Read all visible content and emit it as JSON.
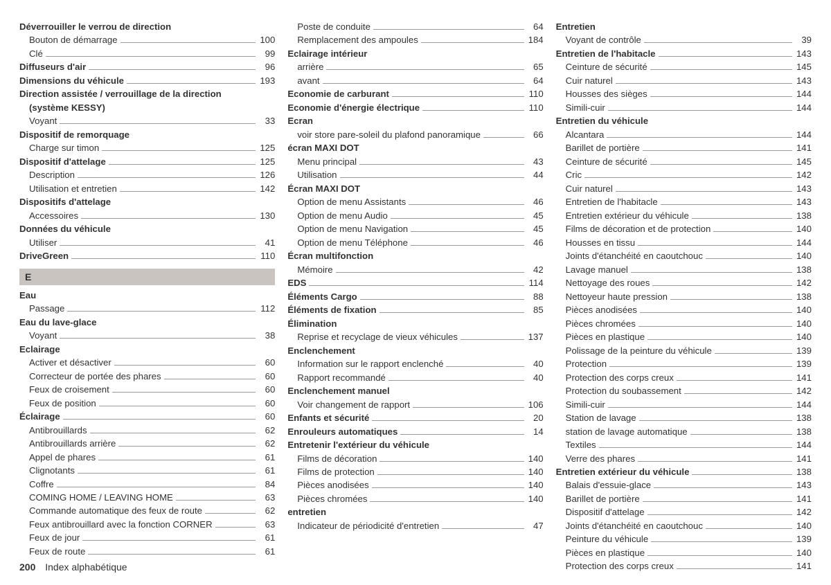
{
  "footer": {
    "page_number": "200",
    "title": "Index alphabétique"
  },
  "letter_header": "E",
  "columns": [
    [
      {
        "type": "header",
        "label": "Déverrouiller le verrou de direction"
      },
      {
        "type": "sub",
        "label": "Bouton de démarrage",
        "page": "100"
      },
      {
        "type": "sub",
        "label": "Clé",
        "page": "99"
      },
      {
        "type": "header",
        "label": "Diffuseurs d'air",
        "page": "96"
      },
      {
        "type": "header",
        "label": "Dimensions du véhicule",
        "page": "193"
      },
      {
        "type": "header",
        "label": "Direction assistée / verrouillage de la direction"
      },
      {
        "type": "sub",
        "label": "(système KESSY)",
        "bold": true
      },
      {
        "type": "sub",
        "label": "Voyant",
        "page": "33"
      },
      {
        "type": "header",
        "label": "Dispositif de remorquage"
      },
      {
        "type": "sub",
        "label": "Charge sur timon",
        "page": "125"
      },
      {
        "type": "header",
        "label": "Dispositif d'attelage",
        "page": "125"
      },
      {
        "type": "sub",
        "label": "Description",
        "page": "126"
      },
      {
        "type": "sub",
        "label": "Utilisation et entretien",
        "page": "142"
      },
      {
        "type": "header",
        "label": "Dispositifs d'attelage"
      },
      {
        "type": "sub",
        "label": "Accessoires",
        "page": "130"
      },
      {
        "type": "header",
        "label": "Données du véhicule"
      },
      {
        "type": "sub",
        "label": "Utiliser",
        "page": "41"
      },
      {
        "type": "header",
        "label": "DriveGreen",
        "page": "110"
      },
      {
        "type": "letter"
      },
      {
        "type": "header",
        "label": "Eau"
      },
      {
        "type": "sub",
        "label": "Passage",
        "page": "112"
      },
      {
        "type": "header",
        "label": "Eau du lave-glace"
      },
      {
        "type": "sub",
        "label": "Voyant",
        "page": "38"
      },
      {
        "type": "header",
        "label": "Eclairage"
      },
      {
        "type": "sub",
        "label": "Activer et désactiver",
        "page": "60"
      },
      {
        "type": "sub",
        "label": "Correcteur de portée des phares",
        "page": "60"
      },
      {
        "type": "sub",
        "label": "Feux de croisement",
        "page": "60"
      },
      {
        "type": "sub",
        "label": "Feux de position",
        "page": "60"
      },
      {
        "type": "header",
        "label": "Éclairage",
        "page": "60"
      },
      {
        "type": "sub",
        "label": "Antibrouillards",
        "page": "62"
      },
      {
        "type": "sub",
        "label": "Antibrouillards arrière",
        "page": "62"
      },
      {
        "type": "sub",
        "label": "Appel de phares",
        "page": "61"
      },
      {
        "type": "sub",
        "label": "Clignotants",
        "page": "61"
      },
      {
        "type": "sub",
        "label": "Coffre",
        "page": "84"
      },
      {
        "type": "sub",
        "label": "COMING HOME / LEAVING HOME",
        "page": "63"
      },
      {
        "type": "sub",
        "label": "Commande automatique des feux de route",
        "page": "62"
      },
      {
        "type": "sub",
        "label": "Feux antibrouillard avec la fonction CORNER",
        "page": "63"
      },
      {
        "type": "sub",
        "label": "Feux de jour",
        "page": "61"
      },
      {
        "type": "sub",
        "label": "Feux de route",
        "page": "61"
      }
    ],
    [
      {
        "type": "sub",
        "label": "Poste de conduite",
        "page": "64"
      },
      {
        "type": "sub",
        "label": "Remplacement des ampoules",
        "page": "184"
      },
      {
        "type": "header",
        "label": "Eclairage intérieur"
      },
      {
        "type": "sub",
        "label": "arrière",
        "page": "65"
      },
      {
        "type": "sub",
        "label": "avant",
        "page": "64"
      },
      {
        "type": "header",
        "label": "Economie de carburant",
        "page": "110"
      },
      {
        "type": "header",
        "label": "Economie d'énergie électrique",
        "page": "110"
      },
      {
        "type": "header",
        "label": "Ecran"
      },
      {
        "type": "sub",
        "label": "voir store pare-soleil du plafond panoramique",
        "page": "66"
      },
      {
        "type": "header",
        "label": "écran MAXI DOT"
      },
      {
        "type": "sub",
        "label": "Menu principal",
        "page": "43"
      },
      {
        "type": "sub",
        "label": "Utilisation",
        "page": "44"
      },
      {
        "type": "header",
        "label": "Écran MAXI DOT"
      },
      {
        "type": "sub",
        "label": "Option de menu Assistants",
        "page": "46"
      },
      {
        "type": "sub",
        "label": "Option de menu Audio",
        "page": "45"
      },
      {
        "type": "sub",
        "label": "Option de menu Navigation",
        "page": "45"
      },
      {
        "type": "sub",
        "label": "Option de menu Téléphone",
        "page": "46"
      },
      {
        "type": "header",
        "label": "Écran multifonction"
      },
      {
        "type": "sub",
        "label": "Mémoire",
        "page": "42"
      },
      {
        "type": "header",
        "label": "EDS",
        "page": "114"
      },
      {
        "type": "header",
        "label": "Éléments Cargo",
        "page": "88"
      },
      {
        "type": "header",
        "label": "Éléments de fixation",
        "page": "85"
      },
      {
        "type": "header",
        "label": "Élimination"
      },
      {
        "type": "sub",
        "label": "Reprise et recyclage de vieux véhicules",
        "page": "137"
      },
      {
        "type": "header",
        "label": "Enclenchement"
      },
      {
        "type": "sub",
        "label": "Information sur le rapport enclenché",
        "page": "40"
      },
      {
        "type": "sub",
        "label": "Rapport recommandé",
        "page": "40"
      },
      {
        "type": "header",
        "label": "Enclenchement manuel"
      },
      {
        "type": "sub",
        "label": "Voir changement de rapport",
        "page": "106"
      },
      {
        "type": "header",
        "label": "Enfants et sécurité",
        "page": "20"
      },
      {
        "type": "header",
        "label": "Enrouleurs automatiques",
        "page": "14"
      },
      {
        "type": "header",
        "label": "Entretenir l'extérieur du véhicule"
      },
      {
        "type": "sub",
        "label": "Films de décoration",
        "page": "140"
      },
      {
        "type": "sub",
        "label": "Films de protection",
        "page": "140"
      },
      {
        "type": "sub",
        "label": "Pièces anodisées",
        "page": "140"
      },
      {
        "type": "sub",
        "label": "Pièces chromées",
        "page": "140"
      },
      {
        "type": "header",
        "label": "entretien"
      },
      {
        "type": "sub",
        "label": "Indicateur de périodicité d'entretien",
        "page": "47"
      }
    ],
    [
      {
        "type": "header",
        "label": "Entretien"
      },
      {
        "type": "sub",
        "label": "Voyant de contrôle",
        "page": "39"
      },
      {
        "type": "header",
        "label": "Entretien de l'habitacle",
        "page": "143"
      },
      {
        "type": "sub",
        "label": "Ceinture de sécurité",
        "page": "145"
      },
      {
        "type": "sub",
        "label": "Cuir naturel",
        "page": "143"
      },
      {
        "type": "sub",
        "label": "Housses des sièges",
        "page": "144"
      },
      {
        "type": "sub",
        "label": "Simili-cuir",
        "page": "144"
      },
      {
        "type": "header",
        "label": "Entretien du véhicule"
      },
      {
        "type": "sub",
        "label": "Alcantara",
        "page": "144"
      },
      {
        "type": "sub",
        "label": "Barillet de portière",
        "page": "141"
      },
      {
        "type": "sub",
        "label": "Ceinture de sécurité",
        "page": "145"
      },
      {
        "type": "sub",
        "label": "Cric",
        "page": "142"
      },
      {
        "type": "sub",
        "label": "Cuir naturel",
        "page": "143"
      },
      {
        "type": "sub",
        "label": "Entretien de l'habitacle",
        "page": "143"
      },
      {
        "type": "sub",
        "label": "Entretien extérieur du véhicule",
        "page": "138"
      },
      {
        "type": "sub",
        "label": "Films de décoration et de protection",
        "page": "140"
      },
      {
        "type": "sub",
        "label": "Housses en tissu",
        "page": "144"
      },
      {
        "type": "sub",
        "label": "Joints d'étanchéité en caoutchouc",
        "page": "140"
      },
      {
        "type": "sub",
        "label": "Lavage manuel",
        "page": "138"
      },
      {
        "type": "sub",
        "label": "Nettoyage des roues",
        "page": "142"
      },
      {
        "type": "sub",
        "label": "Nettoyeur haute pression",
        "page": "138"
      },
      {
        "type": "sub",
        "label": "Pièces anodisées",
        "page": "140"
      },
      {
        "type": "sub",
        "label": "Pièces chromées",
        "page": "140"
      },
      {
        "type": "sub",
        "label": "Pièces en plastique",
        "page": "140"
      },
      {
        "type": "sub",
        "label": "Polissage de la peinture du véhicule",
        "page": "139"
      },
      {
        "type": "sub",
        "label": "Protection",
        "page": "139"
      },
      {
        "type": "sub",
        "label": "Protection des corps creux",
        "page": "141"
      },
      {
        "type": "sub",
        "label": "Protection du soubassement",
        "page": "142"
      },
      {
        "type": "sub",
        "label": "Simili-cuir",
        "page": "144"
      },
      {
        "type": "sub",
        "label": "Station de lavage",
        "page": "138"
      },
      {
        "type": "sub",
        "label": "station de lavage automatique",
        "page": "138"
      },
      {
        "type": "sub",
        "label": "Textiles",
        "page": "144"
      },
      {
        "type": "sub",
        "label": "Verre des phares",
        "page": "141"
      },
      {
        "type": "header",
        "label": "Entretien extérieur du véhicule",
        "page": "138"
      },
      {
        "type": "sub",
        "label": "Balais d'essuie-glace",
        "page": "143"
      },
      {
        "type": "sub",
        "label": "Barillet de portière",
        "page": "141"
      },
      {
        "type": "sub",
        "label": "Dispositif d'attelage",
        "page": "142"
      },
      {
        "type": "sub",
        "label": "Joints d'étanchéité en caoutchouc",
        "page": "140"
      },
      {
        "type": "sub",
        "label": "Peinture du véhicule",
        "page": "139"
      },
      {
        "type": "sub",
        "label": "Pièces en plastique",
        "page": "140"
      },
      {
        "type": "sub",
        "label": "Protection des corps creux",
        "page": "141"
      }
    ]
  ]
}
